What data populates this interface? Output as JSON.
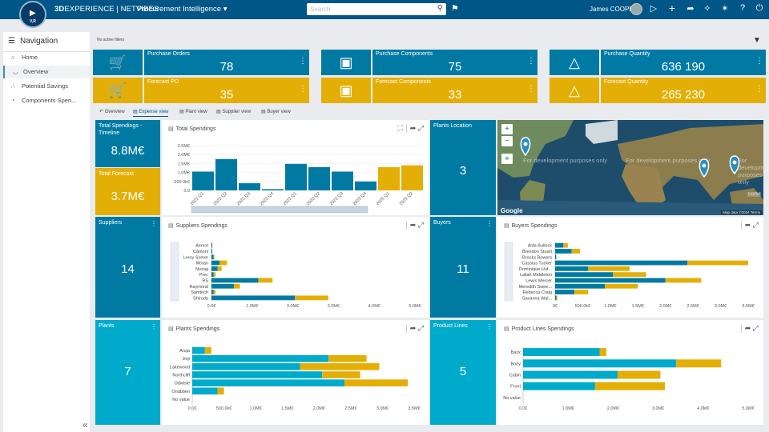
{
  "header": {
    "logo_ver": "V,R",
    "brand_3d": "3D",
    "brand_rest": "EXPERIENCE | NETVIBES",
    "app": "Procurement Intelligence",
    "search_placeholder": "Search",
    "user": "James COOPER"
  },
  "nav": {
    "title": "Navigation",
    "items": [
      {
        "label": "Home"
      },
      {
        "label": "Overview"
      },
      {
        "label": "Potential Savings"
      },
      {
        "label": "Components Spen..."
      }
    ]
  },
  "filters": "No active filters",
  "kpis": {
    "purchase_orders": {
      "label": "Purchase Orders",
      "value": "78"
    },
    "forecast_po": {
      "label": "Forecast PO",
      "value": "35"
    },
    "purchase_components": {
      "label": "Purchase Components",
      "value": "75"
    },
    "forecast_components": {
      "label": "Forecast Components",
      "value": "33"
    },
    "purchase_quantity": {
      "label": "Purchase Quantity",
      "value": "636 190"
    },
    "forecast_quantity": {
      "label": "Forecast Quantity",
      "value": "265 230"
    }
  },
  "tabs": [
    "Overview",
    "Expense view",
    "Plant view",
    "Supplier view",
    "Buyer view"
  ],
  "side_kpis": {
    "total_spendings": {
      "label": "Total Spendings - Timeline",
      "value": "8.8M€"
    },
    "total_forecast": {
      "label": "Total Forecast",
      "value": "3.7M€"
    },
    "plants_location": {
      "label": "Plants Location",
      "value": "3"
    },
    "suppliers": {
      "label": "Suppliers",
      "value": "14"
    },
    "buyers": {
      "label": "Buyers",
      "value": "11"
    },
    "plants": {
      "label": "Plants",
      "value": "7"
    },
    "product_lines": {
      "label": "Product Lines",
      "value": "5"
    }
  },
  "map": {
    "watermark": "For development purposes only",
    "google": "Google",
    "attribution": "Map data ©2024",
    "terms": "Terms",
    "legal": "Leaflet"
  },
  "colors": {
    "blue": "#007aa3",
    "gold": "#e3af06",
    "cyan": "#00aacb",
    "header": "#005686"
  },
  "chart_data": [
    {
      "id": "total",
      "type": "bar",
      "title": "Total Spendings",
      "categories": [
        "2022 Q1",
        "2022 Q2",
        "2022 Q3",
        "2022 Q4",
        "2023 Q1",
        "2023 Q2",
        "2023 Q3",
        "2023 Q4",
        "2025 Q1",
        "2025 Q2"
      ],
      "values": [
        1.05,
        1.75,
        0.4,
        0.07,
        1.48,
        1.3,
        1.05,
        0.5,
        1.3,
        1.4
      ],
      "kinds": [
        "actual",
        "actual",
        "actual",
        "actual",
        "actual",
        "actual",
        "actual",
        "actual",
        "forecast",
        "forecast"
      ],
      "yticks": [
        "0.0",
        "500.0k€",
        "1.0M€",
        "1.5M€",
        "2.0M€",
        "2.5M€"
      ],
      "ylim": [
        0,
        2.5
      ]
    },
    {
      "id": "suppliers",
      "type": "bar",
      "orientation": "horizontal",
      "stacked": true,
      "title": "Suppliers Spendings",
      "categories": [
        "Aemot",
        "Cantoni",
        "Leroy Somer",
        "Motan",
        "Nozag",
        "Prec",
        "RS",
        "Raymond",
        "Samtech",
        "Shiruda"
      ],
      "series": [
        {
          "name": "actual",
          "values": [
            0.02,
            0.02,
            0.05,
            0.2,
            0.15,
            0.05,
            1.15,
            0.55,
            0.05,
            2.05
          ]
        },
        {
          "name": "forecast",
          "values": [
            0.0,
            0.0,
            0.02,
            0.18,
            0.1,
            0.05,
            0.35,
            0.15,
            0.05,
            0.82
          ]
        }
      ],
      "xticks": [
        "0.0€",
        "1.0M€",
        "2.0M€",
        "3.0M€",
        "4.0M€",
        "5.0M€"
      ],
      "xlim": [
        0,
        5
      ]
    },
    {
      "id": "buyers",
      "type": "bar",
      "orientation": "horizontal",
      "stacked": true,
      "title": "Buyers Spendings",
      "categories": [
        "Alda Bullock",
        "Brendon Stuart",
        "Brooks Bowers",
        "Cassius Tucker",
        "Dominique Huf...",
        "Lailah Middleton",
        "Lewis Mercer",
        "Meredith Swee...",
        "Rebecca Craig",
        "Savanna Wal..."
      ],
      "series": [
        {
          "name": "actual",
          "values": [
            0.15,
            0.3,
            0.02,
            2.4,
            0.6,
            1.05,
            2.0,
            0.9,
            0.35,
            0.02
          ]
        },
        {
          "name": "forecast",
          "values": [
            0.08,
            0.15,
            0.0,
            1.1,
            0.75,
            0.6,
            0.65,
            0.6,
            0.25,
            0.02
          ]
        }
      ],
      "xticks": [
        "0€",
        "500.0k€",
        "1.0M€",
        "1.5M€",
        "2.0M€",
        "2.5M€",
        "3.0M€",
        "3.5M€"
      ],
      "xlim": [
        0,
        3.5
      ]
    },
    {
      "id": "plants",
      "type": "bar",
      "orientation": "horizontal",
      "stacked": true,
      "title": "Plants Spendings",
      "categories": [
        "Aruja",
        "Jinji",
        "Lakewood",
        "Northcliff",
        "Odwisle",
        "Onabben",
        "No value"
      ],
      "series": [
        {
          "name": "actual",
          "values": [
            0.2,
            2.15,
            1.7,
            2.05,
            2.4,
            0.4,
            0.0
          ]
        },
        {
          "name": "forecast",
          "values": [
            0.1,
            0.6,
            1.25,
            0.6,
            1.0,
            0.1,
            0.0
          ]
        }
      ],
      "xticks": [
        "0.0€",
        "500.0k€",
        "1.0M€",
        "1.5M€",
        "2.0M€",
        "2.5M€",
        "3.0M€",
        "3.5M€"
      ],
      "xlim": [
        0,
        3.5
      ]
    },
    {
      "id": "product_lines",
      "type": "bar",
      "orientation": "horizontal",
      "stacked": true,
      "title": "Product Lines Spendings",
      "categories": [
        "Back",
        "Body",
        "Cabin",
        "Front",
        "No value"
      ],
      "series": [
        {
          "name": "actual",
          "values": [
            1.7,
            3.4,
            2.1,
            1.6,
            0.0
          ]
        },
        {
          "name": "forecast",
          "values": [
            0.15,
            1.0,
            0.95,
            1.55,
            0.0
          ]
        }
      ],
      "xticks": [
        "0.0€",
        "1.0M€",
        "2.0M€",
        "3.0M€",
        "4.0M€",
        "5.0M€"
      ],
      "xlim": [
        0,
        5
      ]
    }
  ]
}
